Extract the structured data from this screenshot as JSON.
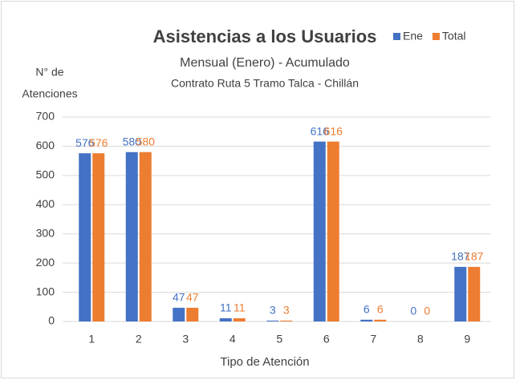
{
  "chart_data": {
    "type": "bar",
    "title": "Asistencias a los Usuarios",
    "subtitle": [
      "Mensual (Enero) - Acumulado",
      "Contrato Ruta 5 Tramo Talca - Chillán"
    ],
    "ylabel": [
      "N° de",
      "Atenciones"
    ],
    "xlabel": "Tipo de Atención",
    "categories": [
      "1",
      "2",
      "3",
      "4",
      "5",
      "6",
      "7",
      "8",
      "9"
    ],
    "series": [
      {
        "name": "Ene",
        "color": "#4472c4",
        "values": [
          576,
          580,
          47,
          11,
          3,
          616,
          6,
          0,
          187
        ]
      },
      {
        "name": "Total",
        "color": "#ed7d31",
        "values": [
          576,
          580,
          47,
          11,
          3,
          616,
          6,
          0,
          187
        ]
      }
    ],
    "ylim": [
      0,
      700
    ],
    "yticks": [
      0,
      100,
      200,
      300,
      400,
      500,
      600,
      700
    ],
    "grid": true,
    "legend": "top-right"
  }
}
